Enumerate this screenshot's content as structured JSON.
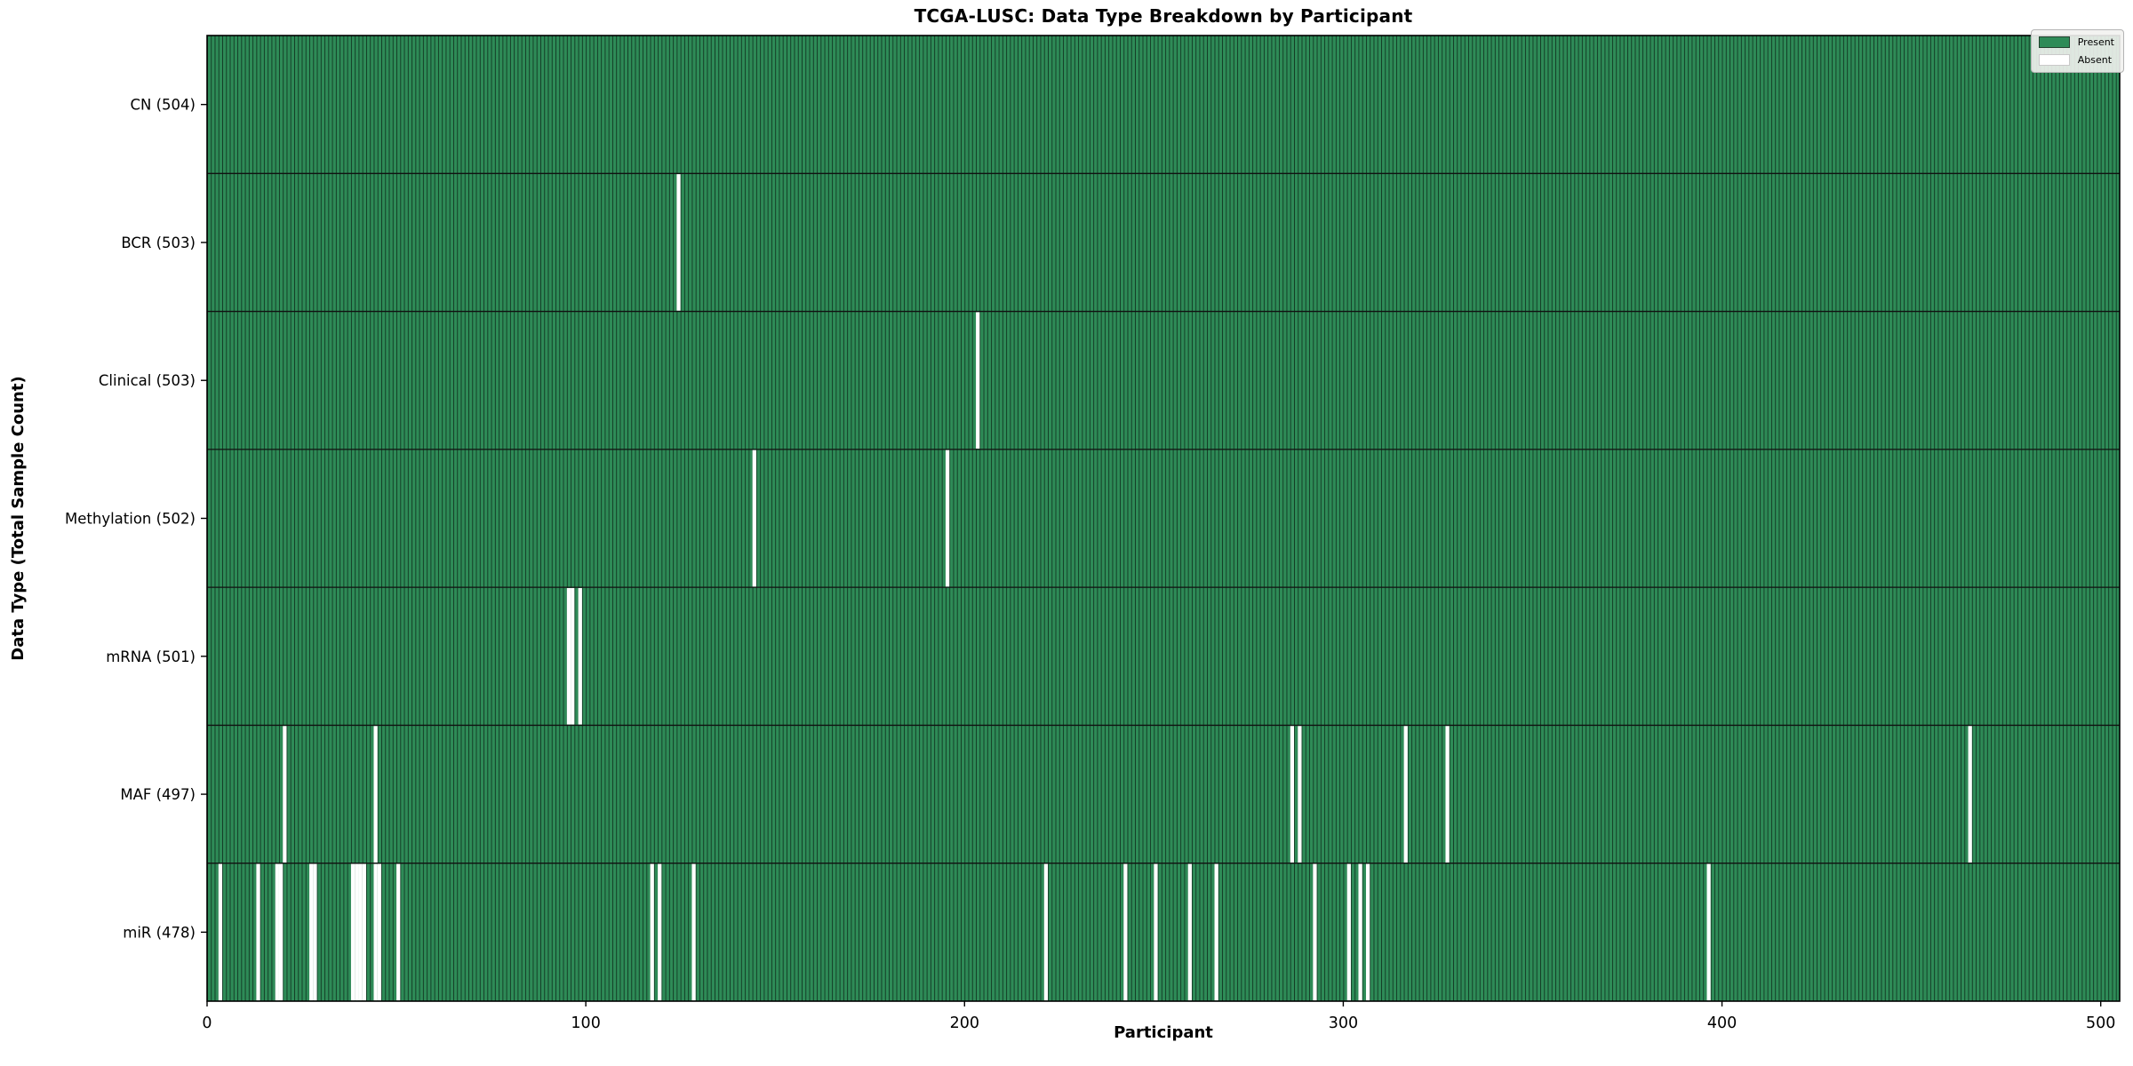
{
  "figure": {
    "title": "TCGA-LUSC: Data Type Breakdown by Participant",
    "xlabel": "Participant",
    "ylabel": "Data Type (Total Sample Count)"
  },
  "legend": {
    "present_label": "Present",
    "absent_label": "Absent"
  },
  "chart_data": {
    "type": "heatmap",
    "title": "TCGA-LUSC: Data Type Breakdown by Participant",
    "xlabel": "Participant",
    "ylabel": "Data Type (Total Sample Count)",
    "legend_position": "upper right",
    "legend_entries": [
      {
        "label": "Present",
        "color": "#2e8b57"
      },
      {
        "label": "Absent",
        "color": "#ffffff"
      }
    ],
    "colors": {
      "present": "#2e8b57",
      "absent": "#ffffff",
      "bar_edge": "rgba(0,0,0,0.6)",
      "row_separator": "#111111",
      "frame": "#000000"
    },
    "total_participants": 504,
    "x_ticks": [
      0,
      100,
      200,
      300,
      400,
      500
    ],
    "xlim": [
      0,
      505
    ],
    "rows": [
      {
        "label": "CN (504)",
        "data_type": "CN",
        "present_count": 504,
        "absent_participants": []
      },
      {
        "label": "BCR (503)",
        "data_type": "BCR",
        "present_count": 503,
        "absent_participants": [
          124
        ]
      },
      {
        "label": "Clinical (503)",
        "data_type": "Clinical",
        "present_count": 503,
        "absent_participants": [
          203
        ]
      },
      {
        "label": "Methylation (502)",
        "data_type": "Methylation",
        "present_count": 502,
        "absent_participants": [
          144,
          195
        ]
      },
      {
        "label": "mRNA (501)",
        "data_type": "mRNA",
        "present_count": 501,
        "absent_participants": [
          95,
          96,
          98
        ]
      },
      {
        "label": "MAF (497)",
        "data_type": "MAF",
        "present_count": 497,
        "absent_participants": [
          20,
          44,
          286,
          288,
          316,
          327,
          465
        ]
      },
      {
        "label": "miR (478)",
        "data_type": "miR",
        "present_count": 478,
        "absent_participants": [
          3,
          13,
          18,
          19,
          27,
          28,
          38,
          39,
          40,
          41,
          44,
          45,
          50,
          117,
          119,
          128,
          221,
          242,
          250,
          259,
          266,
          292,
          301,
          304,
          306,
          396
        ]
      }
    ]
  }
}
